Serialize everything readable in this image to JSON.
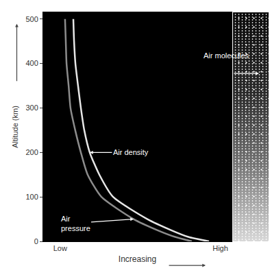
{
  "chart_data": {
    "type": "line",
    "x_label": "Increasing",
    "y_label": "Altitude (km)",
    "y": [
      0,
      10,
      25,
      50,
      100,
      150,
      200,
      250,
      300,
      350,
      400,
      450,
      500
    ],
    "series": [
      {
        "name": "Air density",
        "color": "#e6e6e6",
        "values": [
          0.88,
          0.77,
          0.68,
          0.553,
          0.371,
          0.298,
          0.247,
          0.218,
          0.2,
          0.185,
          0.171,
          0.164,
          0.16
        ]
      },
      {
        "name": "Air pressure",
        "color": "#8c8c8c",
        "values": [
          0.789,
          0.7,
          0.607,
          0.48,
          0.309,
          0.236,
          0.2,
          0.17,
          0.145,
          0.135,
          0.124,
          0.12,
          0.116
        ]
      }
    ],
    "xlim": [
      0,
      1
    ],
    "ylim": [
      0,
      515
    ],
    "xticks": [
      {
        "value": 0.09,
        "label": "Low"
      },
      {
        "value": 0.94,
        "label": "High"
      }
    ],
    "yticks": [
      0,
      100,
      200,
      300,
      400,
      500
    ],
    "grid": false,
    "annotations": [
      "Air molecules"
    ]
  }
}
